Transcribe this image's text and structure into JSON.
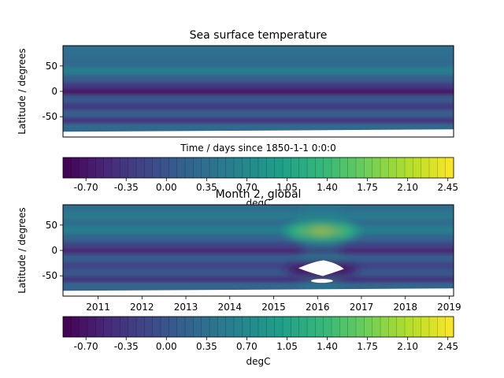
{
  "chart_data": [
    {
      "type": "heatmap",
      "title": "Sea surface temperature",
      "xlabel": "Time / days since 1850-1-1 0:0:0",
      "ylabel": "Latitude / degrees",
      "ylim": [
        -90,
        90
      ],
      "yticks": [
        50,
        0,
        -50
      ],
      "xticks_visible": false,
      "colorbar": {
        "label": "",
        "min": -0.9,
        "max": 2.5,
        "levels": 48,
        "ticks": [
          "-0.70",
          "-0.35",
          "0.00",
          "0.35",
          "0.70",
          "1.05",
          "1.40",
          "1.75",
          "2.10",
          "2.45"
        ],
        "tick_values": [
          -0.7,
          -0.35,
          0.0,
          0.35,
          0.7,
          1.05,
          1.4,
          1.75,
          2.1,
          2.45
        ],
        "colormap": "viridis"
      },
      "bands": [
        {
          "lat": 82,
          "value": 0.35
        },
        {
          "lat": 68,
          "value": 0.3
        },
        {
          "lat": 55,
          "value": 0.25
        },
        {
          "lat": 40,
          "value": 0.55
        },
        {
          "lat": 25,
          "value": 0.1
        },
        {
          "lat": 10,
          "value": -0.3
        },
        {
          "lat": 0,
          "value": -0.7
        },
        {
          "lat": -15,
          "value": 0.05
        },
        {
          "lat": -30,
          "value": -0.3
        },
        {
          "lat": -45,
          "value": 0.15
        },
        {
          "lat": -58,
          "value": -0.4
        },
        {
          "lat": -70,
          "value": 0.3
        },
        {
          "lat": -78,
          "value": 0.2
        }
      ]
    },
    {
      "type": "heatmap",
      "title": "Month 2, global",
      "xlabel": "",
      "ylabel": "Latitude / degrees",
      "ylim": [
        -90,
        90
      ],
      "yticks": [
        50,
        0,
        -50
      ],
      "xlim": [
        2010.2,
        2019.1
      ],
      "xticks": [
        "2011",
        "2012",
        "2013",
        "2014",
        "2015",
        "2016",
        "2017",
        "2018",
        "2019"
      ],
      "xtick_values": [
        2011,
        2012,
        2013,
        2014,
        2015,
        2016,
        2017,
        2018,
        2019
      ],
      "colorbar": {
        "label": "degC",
        "min": -0.9,
        "max": 2.5,
        "levels": 48,
        "ticks": [
          "-0.70",
          "-0.35",
          "0.00",
          "0.35",
          "0.70",
          "1.05",
          "1.40",
          "1.75",
          "2.10",
          "2.45"
        ],
        "tick_values": [
          -0.7,
          -0.35,
          0.0,
          0.35,
          0.7,
          1.05,
          1.4,
          1.75,
          2.1,
          2.45
        ],
        "colormap": "viridis"
      },
      "bands": [
        {
          "lat": 82,
          "value": 0.3
        },
        {
          "lat": 68,
          "value": 0.5
        },
        {
          "lat": 55,
          "value": 0.3
        },
        {
          "lat": 40,
          "value": 0.55
        },
        {
          "lat": 25,
          "value": 0.2
        },
        {
          "lat": 10,
          "value": -0.2
        },
        {
          "lat": 0,
          "value": -0.55
        },
        {
          "lat": -15,
          "value": 0.1
        },
        {
          "lat": -30,
          "value": -0.2
        },
        {
          "lat": -45,
          "value": 0.05
        },
        {
          "lat": -58,
          "value": -0.4
        },
        {
          "lat": -70,
          "value": 0.25
        },
        {
          "lat": -78,
          "value": 0.15
        }
      ],
      "hotspot": {
        "x": 2016.1,
        "lat": 38,
        "value": 2.3
      },
      "missing_regions": [
        {
          "x": 2016.1,
          "lat": -35
        },
        {
          "x": 2016.1,
          "lat": -60
        }
      ]
    }
  ],
  "colors": {
    "viridis": [
      "#440154",
      "#482878",
      "#3e4989",
      "#31688e",
      "#26828e",
      "#1f9e89",
      "#35b779",
      "#6ece58",
      "#b5de2b",
      "#fde725"
    ]
  }
}
